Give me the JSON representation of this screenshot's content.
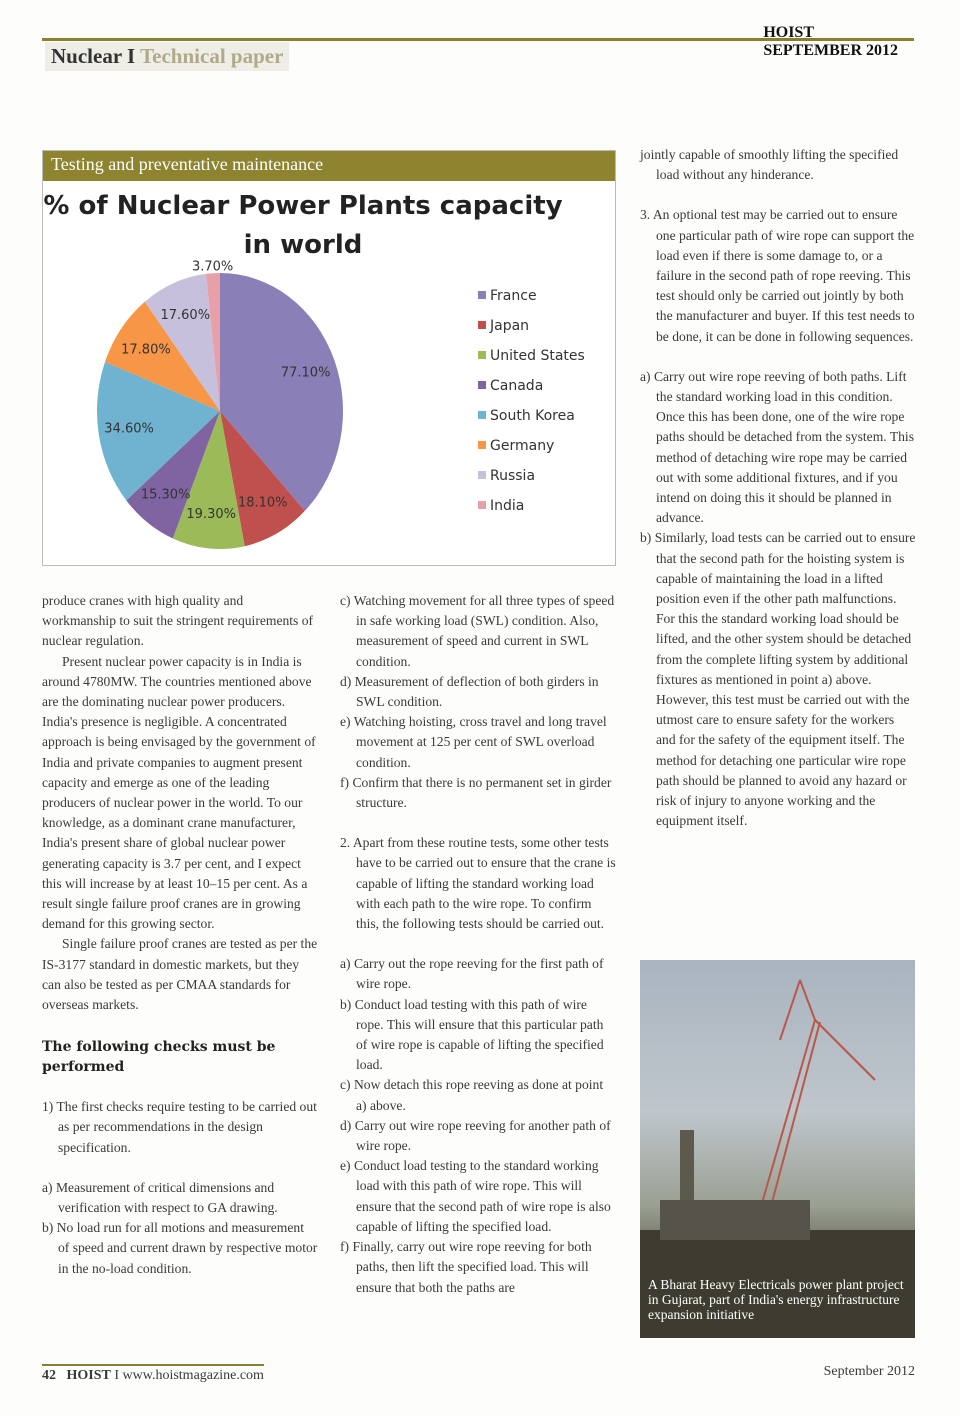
{
  "header": {
    "section": "Nuclear",
    "separator": "I",
    "category": "Technical paper",
    "magazine": "HOIST",
    "issue": "SEPTEMBER 2012"
  },
  "box": {
    "title": "Testing and preventative maintenance"
  },
  "chart_data": {
    "type": "pie",
    "title": "% of Nuclear Power Plants capacity in world",
    "legend_placement": "right",
    "categories": [
      "France",
      "Japan",
      "United States",
      "Canada",
      "South Korea",
      "Germany",
      "Russia",
      "India"
    ],
    "values": [
      77.1,
      18.1,
      19.3,
      15.3,
      34.6,
      17.8,
      17.6,
      3.7
    ],
    "labels": [
      "77.10%",
      "18.10%",
      "19.30%",
      "15.30%",
      "34.60%",
      "17.80%",
      "17.60%",
      "3.70%"
    ],
    "colors": [
      "#8b7fb8",
      "#c0504d",
      "#9bbb59",
      "#8064a2",
      "#6fb3d0",
      "#f79646",
      "#c6c0dc",
      "#e8a0a8"
    ]
  },
  "col1": [
    {
      "t": "produce cranes with high quality and workmanship to suit the stringent requirements of nuclear regulation.",
      "c": ""
    },
    {
      "t": "Present nuclear power capacity is in India is around 4780MW. The countries mentioned above are the dominating nuclear power producers. India's presence is negligible. A concentrated approach is being envisaged by the government of India and private companies to augment present capacity and emerge as one of the leading producers of nuclear power in the world. To our knowledge, as a dominant crane manufacturer, India's present share of global nuclear power generating capacity is 3.7 per cent, and I expect this will increase by at least 10–15 per cent. As a result single failure proof cranes are in growing demand for this growing sector.",
      "c": "ind"
    },
    {
      "t": "Single failure proof cranes are tested as per the IS-3177 standard in domestic markets, but they can also be tested as per CMAA standards for overseas markets.",
      "c": "ind"
    }
  ],
  "subhead": "The following checks must be performed",
  "col1b": [
    {
      "t": "1) The first checks require testing to be carried out as per recommendations in the design specification.",
      "c": "hang"
    },
    {
      "t": "a) Measurement of critical dimensions and verification with respect to GA drawing.",
      "c": "hang"
    },
    {
      "t": "b) No load run for all motions and measurement of speed and current drawn by respective motor in the no-load condition.",
      "c": "hang"
    }
  ],
  "col2": [
    {
      "t": "c) Watching movement for all three types of speed in safe working load (SWL) condition. Also, measurement of speed and current in SWL condition.",
      "c": "hang"
    },
    {
      "t": "d) Measurement of deflection of both girders in SWL condition.",
      "c": "hang"
    },
    {
      "t": "e) Watching hoisting, cross travel and long travel movement at 125 per cent of SWL overload condition.",
      "c": "hang"
    },
    {
      "t": "f) Confirm that there is no permanent set in girder structure.",
      "c": "hang"
    },
    {
      "t": "2. Apart from these routine tests, some other tests have to be carried out to ensure that the crane is capable of lifting the standard working load with each path to the wire rope. To confirm this, the following tests should be carried out.",
      "c": "hang gapb"
    },
    {
      "t": "a) Carry out the rope reeving for the first path of wire rope.",
      "c": "hang gapb"
    },
    {
      "t": "b) Conduct load testing with this path of wire rope. This will ensure that this particular path of wire rope is capable of lifting the specified load.",
      "c": "hang"
    },
    {
      "t": "c) Now detach this rope reeving as done at point a) above.",
      "c": "hang"
    },
    {
      "t": "d) Carry out wire rope reeving for another path of wire rope.",
      "c": "hang"
    },
    {
      "t": "e) Conduct load testing to the standard working load with this path of wire rope. This will ensure that the second path of wire rope is also capable of lifting the specified load.",
      "c": "hang"
    },
    {
      "t": "f) Finally, carry out wire rope reeving for both paths, then lift the specified load. This will ensure that both the paths are",
      "c": "hang"
    }
  ],
  "col3": [
    {
      "t": "jointly capable of smoothly lifting the specified load without any hinderance.",
      "c": "hang nofirst"
    },
    {
      "t": "3. An optional test may be carried out to ensure one particular path of wire rope can support the load even if there is some damage to, or a failure in the second path of rope reeving. This test should only be carried out jointly by both the manufacturer and buyer. If this test needs to be done, it can be done in following sequences.",
      "c": "hang gapb"
    },
    {
      "t": "a) Carry out wire rope reeving of both paths. Lift the standard working load in this condition. Once this has been done, one of the wire rope paths should be detached from the system. This method of detaching wire rope may be carried out with some additional fixtures, and if you intend on doing this it should be planned in advance.",
      "c": "hang gapb"
    },
    {
      "t": "b) Similarly, load tests can be carried out to ensure that the second path for the hoisting system is capable of maintaining the load in a lifted position even if the other path malfunctions. For this the standard working load should be lifted, and the other system should be detached from the complete lifting system by additional fixtures as mentioned in point a) above. However, this test must be carried out with the utmost care to ensure safety for the workers and for the safety of the equipment itself. The method for detaching one particular wire rope path should be planned to avoid any hazard or risk of injury to anyone working and the equipment itself.",
      "c": "hang"
    }
  ],
  "photo": {
    "caption": "A Bharat Heavy Electricals power plant project in Gujarat, part of India's energy infrastructure expansion initiative"
  },
  "footer": {
    "page": "42",
    "magazine": "HOIST",
    "separator": "I",
    "url": "www.hoistmagazine.com",
    "date": "September 2012"
  }
}
